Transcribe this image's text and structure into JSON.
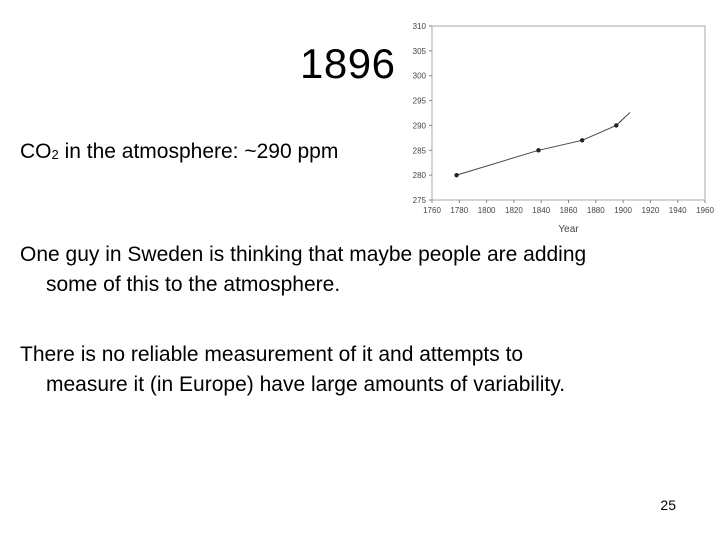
{
  "slide": {
    "title": "1896",
    "co2_label_prefix": "CO",
    "co2_subscript": "2",
    "co2_label_suffix": " in the atmosphere: ~290 ppm",
    "paragraph1_line1": "One guy in Sweden is thinking that maybe people are adding",
    "paragraph1_line2": "some of this to the atmosphere.",
    "paragraph2_line1": "There is no reliable measurement of it and attempts to",
    "paragraph2_line2": "measure it (in Europe) have large amounts of variability.",
    "page_number": "25"
  },
  "chart_data": {
    "type": "line",
    "title": "",
    "xlabel": "Year",
    "ylabel": "",
    "xlim": [
      1760,
      1960
    ],
    "ylim": [
      275,
      310
    ],
    "x_ticks": [
      1760,
      1780,
      1800,
      1820,
      1840,
      1860,
      1880,
      1900,
      1920,
      1940,
      1960
    ],
    "y_ticks": [
      275,
      280,
      285,
      290,
      295,
      300,
      305,
      310
    ],
    "grid": false,
    "series": [
      {
        "points": [
          {
            "x": 1778,
            "y": 280
          },
          {
            "x": 1838,
            "y": 285
          },
          {
            "x": 1870,
            "y": 287
          },
          {
            "x": 1895,
            "y": 290
          },
          {
            "x": 1905,
            "y": 292.6
          }
        ],
        "markers": [
          {
            "x": 1778,
            "y": 280
          },
          {
            "x": 1838,
            "y": 285
          },
          {
            "x": 1870,
            "y": 287
          },
          {
            "x": 1895,
            "y": 290
          }
        ]
      }
    ]
  }
}
